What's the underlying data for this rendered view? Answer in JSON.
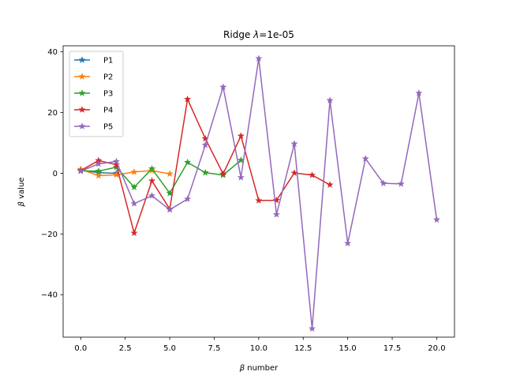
{
  "chart_data": {
    "type": "line",
    "title_prefix": "Ridge ",
    "title_lambda": "λ",
    "title_suffix": "=1e-05",
    "xlabel_symbol": "β",
    "xlabel_rest": " number",
    "ylabel_symbol": "β",
    "ylabel_rest": " value",
    "xlim": [
      -0.99,
      21
    ],
    "ylim": [
      -54,
      42
    ],
    "xticks": [
      0.0,
      2.5,
      5.0,
      7.5,
      10.0,
      12.5,
      15.0,
      17.5,
      20.0
    ],
    "xtick_labels": [
      "0.0",
      "2.5",
      "5.0",
      "7.5",
      "10.0",
      "12.5",
      "15.0",
      "17.5",
      "20.0"
    ],
    "yticks": [
      -40,
      -20,
      0,
      20,
      40
    ],
    "ytick_labels": [
      "−40",
      "−20",
      "0",
      "20",
      "40"
    ],
    "grid": false,
    "legend_position": "top-left",
    "marker": "star",
    "series": [
      {
        "name": "P1",
        "color": "#1f77b4",
        "x": [
          0,
          1,
          2
        ],
        "values": [
          1.0,
          0.2,
          0.0
        ]
      },
      {
        "name": "P2",
        "color": "#ff7f0e",
        "x": [
          0,
          1,
          2,
          3,
          4,
          5
        ],
        "values": [
          1.3,
          -0.8,
          -0.5,
          0.4,
          0.9,
          -0.2
        ]
      },
      {
        "name": "P3",
        "color": "#2ca02c",
        "x": [
          0,
          1,
          2,
          3,
          4,
          5,
          6,
          7,
          8,
          9
        ],
        "values": [
          0.8,
          0.7,
          2.0,
          -4.6,
          1.5,
          -6.6,
          3.6,
          0.2,
          -0.6,
          4.3
        ]
      },
      {
        "name": "P4",
        "color": "#d62728",
        "x": [
          0,
          1,
          2,
          3,
          4,
          5,
          6,
          7,
          8,
          9,
          10,
          11,
          12,
          13,
          14
        ],
        "values": [
          0.9,
          4.2,
          2.8,
          -19.7,
          -2.5,
          -11.8,
          24.4,
          11.4,
          -0.2,
          12.3,
          -9.0,
          -8.9,
          0.1,
          -0.6,
          -3.8
        ]
      },
      {
        "name": "P5",
        "color": "#9467bd",
        "x": [
          0,
          1,
          2,
          3,
          4,
          5,
          6,
          7,
          8,
          9,
          10,
          11,
          12,
          13,
          14,
          15,
          16,
          17,
          18,
          19,
          20
        ],
        "values": [
          0.7,
          3.1,
          3.9,
          -10.0,
          -7.4,
          -12.0,
          -8.5,
          9.3,
          28.4,
          -1.4,
          37.8,
          -13.6,
          9.7,
          -51.2,
          24.0,
          -23.1,
          4.8,
          -3.3,
          -3.5,
          26.4,
          -15.3
        ]
      }
    ]
  }
}
